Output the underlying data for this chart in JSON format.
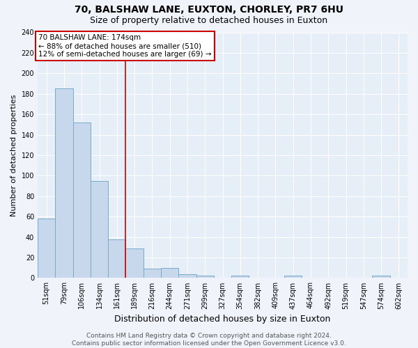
{
  "title1": "70, BALSHAW LANE, EUXTON, CHORLEY, PR7 6HU",
  "title2": "Size of property relative to detached houses in Euxton",
  "xlabel": "Distribution of detached houses by size in Euxton",
  "ylabel": "Number of detached properties",
  "categories": [
    "51sqm",
    "79sqm",
    "106sqm",
    "134sqm",
    "161sqm",
    "189sqm",
    "216sqm",
    "244sqm",
    "271sqm",
    "299sqm",
    "327sqm",
    "354sqm",
    "382sqm",
    "409sqm",
    "437sqm",
    "464sqm",
    "492sqm",
    "519sqm",
    "547sqm",
    "574sqm",
    "602sqm"
  ],
  "values": [
    58,
    185,
    152,
    95,
    38,
    29,
    9,
    10,
    4,
    2,
    0,
    2,
    0,
    0,
    2,
    0,
    0,
    0,
    0,
    2,
    0
  ],
  "bar_color": "#c8d8ec",
  "bar_edge_color": "#7aaac8",
  "red_line_color": "#cc0000",
  "annotation_line1": "70 BALSHAW LANE: 174sqm",
  "annotation_line2": "← 88% of detached houses are smaller (510)",
  "annotation_line3": "12% of semi-detached houses are larger (69) →",
  "annotation_box_color": "#ffffff",
  "annotation_box_edge": "#cc0000",
  "ylim": [
    0,
    240
  ],
  "yticks": [
    0,
    20,
    40,
    60,
    80,
    100,
    120,
    140,
    160,
    180,
    200,
    220,
    240
  ],
  "footer1": "Contains HM Land Registry data © Crown copyright and database right 2024.",
  "footer2": "Contains public sector information licensed under the Open Government Licence v3.0.",
  "bg_color": "#f0f4fa",
  "plot_bg_color": "#e6eef8",
  "grid_color": "#ffffff",
  "title1_fontsize": 10,
  "title2_fontsize": 9,
  "xlabel_fontsize": 9,
  "ylabel_fontsize": 8,
  "tick_fontsize": 7,
  "annot_fontsize": 7.5,
  "footer_fontsize": 6.5
}
